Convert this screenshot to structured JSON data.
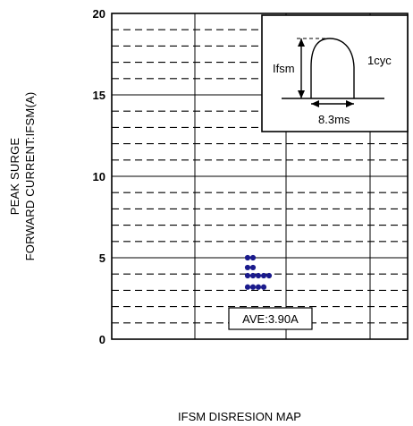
{
  "chart_data": {
    "type": "scatter",
    "title": "",
    "caption": "IFSM DISRESION MAP",
    "ylabel_lines": [
      "PEAK SURGE",
      "FORWARD CURRENT:IFSM(A)"
    ],
    "xlabel": "",
    "ylim": [
      0,
      20
    ],
    "y_ticks": [
      {
        "value": 0,
        "label": "0"
      },
      {
        "value": 5,
        "label": "5"
      },
      {
        "value": 10,
        "label": "10"
      },
      {
        "value": 15,
        "label": "15"
      },
      {
        "value": 20,
        "label": "20"
      }
    ],
    "solid_gridlines": [
      5,
      10,
      15
    ],
    "dashed_gridlines": [
      1,
      2,
      3,
      4,
      6,
      7,
      8,
      9,
      11,
      12,
      13,
      14,
      16,
      17,
      18,
      19
    ],
    "grid": true,
    "points": [
      {
        "x": 0,
        "y": 5.0
      },
      {
        "x": 1,
        "y": 5.0
      },
      {
        "x": 0,
        "y": 4.4
      },
      {
        "x": 1,
        "y": 4.4
      },
      {
        "x": 0,
        "y": 3.9
      },
      {
        "x": 1,
        "y": 3.9
      },
      {
        "x": 2,
        "y": 3.9
      },
      {
        "x": 3,
        "y": 3.9
      },
      {
        "x": 4,
        "y": 3.9
      },
      {
        "x": 0,
        "y": 3.2
      },
      {
        "x": 1,
        "y": 3.2
      },
      {
        "x": 2,
        "y": 3.2
      },
      {
        "x": 3,
        "y": 3.2
      }
    ],
    "point_color": "#1a1a8c",
    "annotation": {
      "text": "AVE:3.90A"
    },
    "inset": {
      "label_peak": "Ifsm",
      "label_cycle": "1cyc",
      "label_width": "8.3ms"
    }
  }
}
